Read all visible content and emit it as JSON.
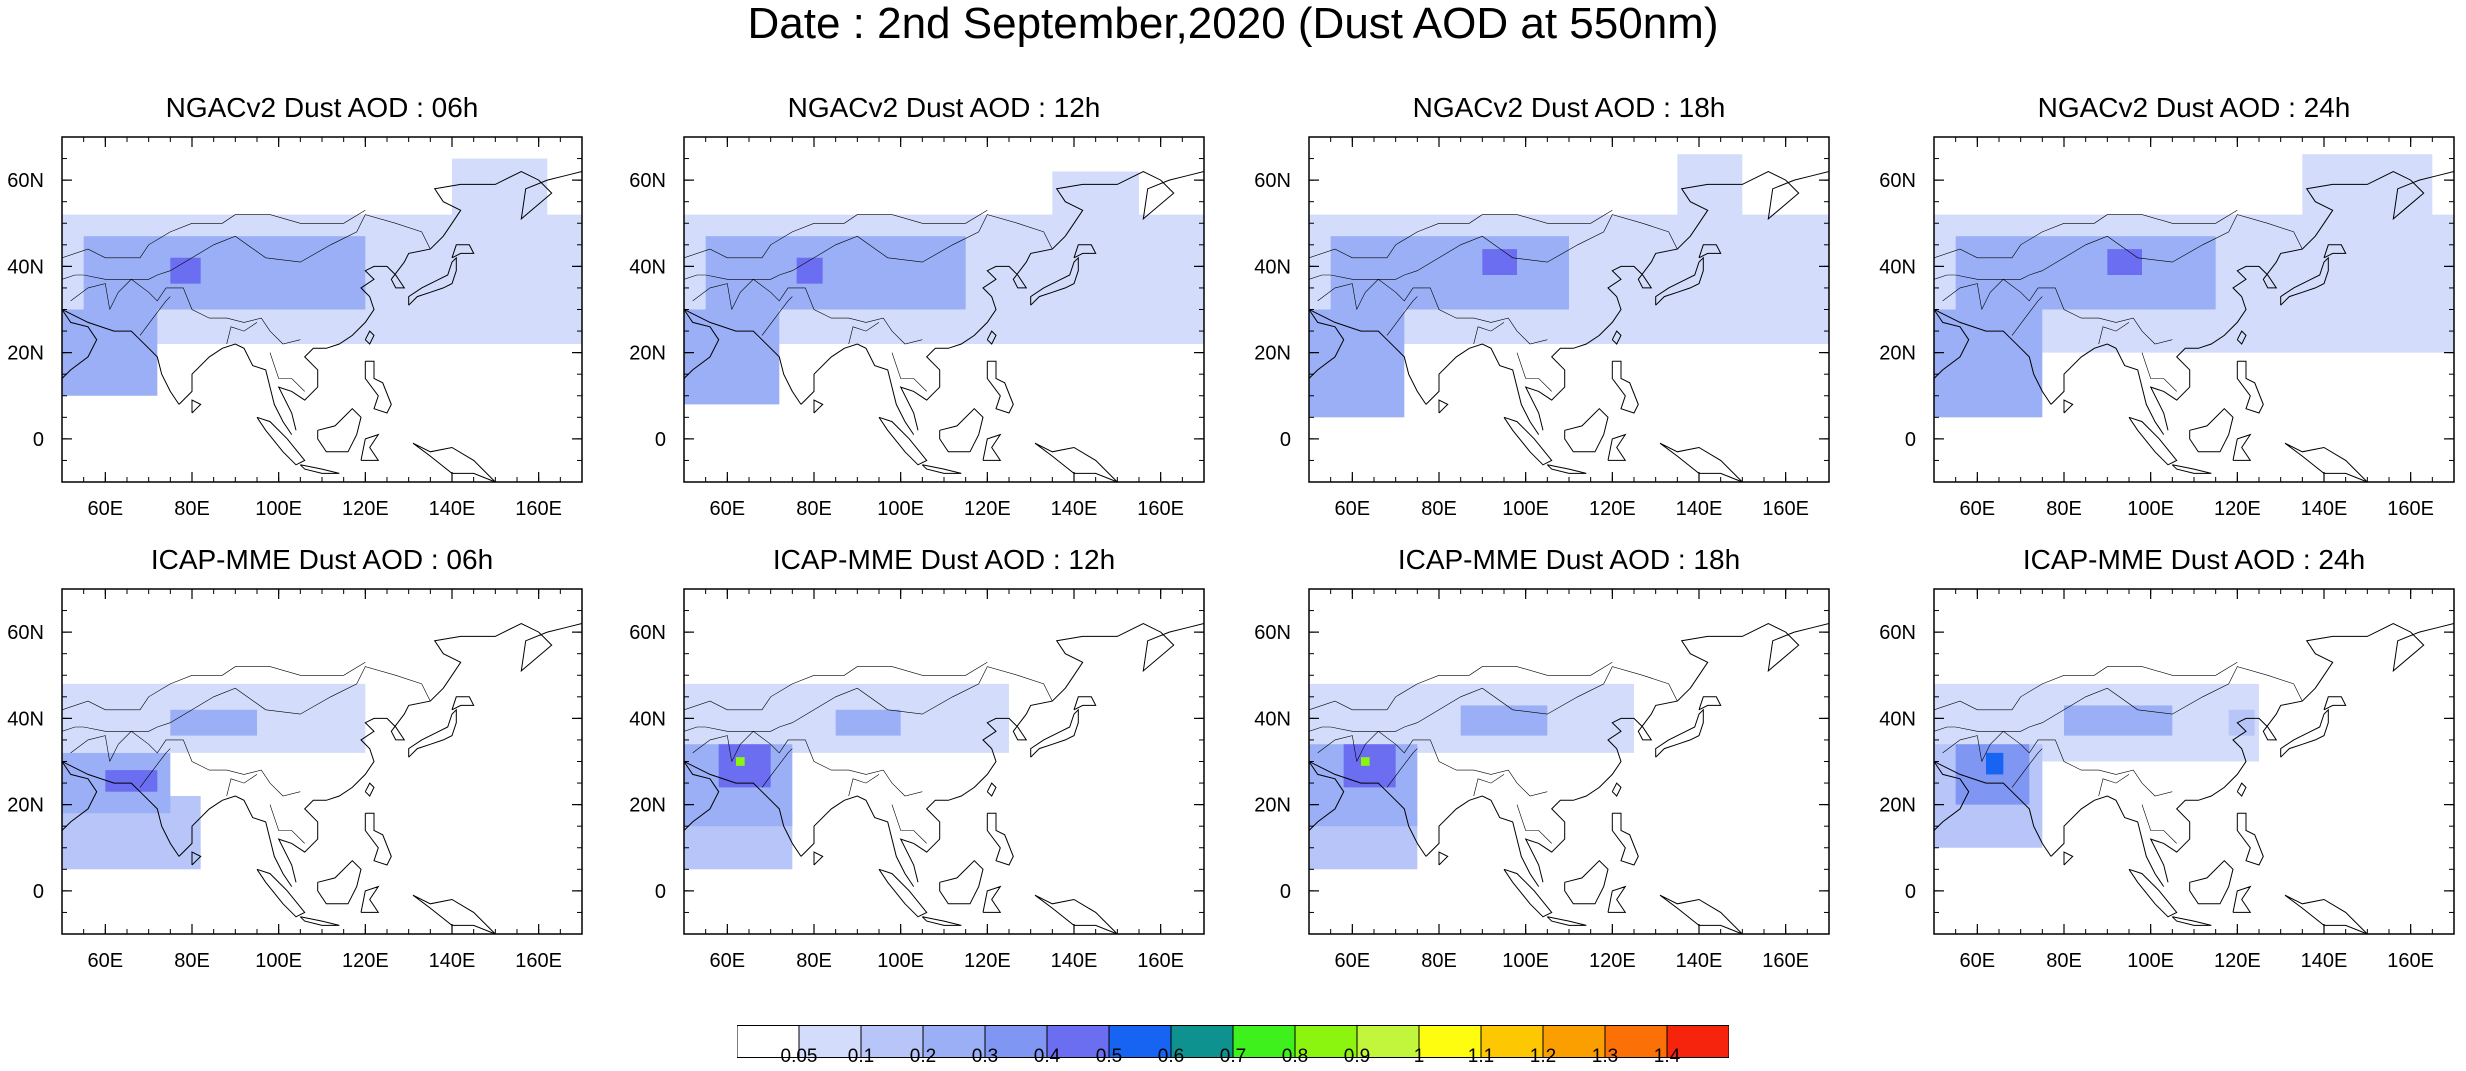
{
  "title": "Date : 2nd September,2020 (Dust AOD at 550nm)",
  "panels": [
    {
      "title": "NGACv2 Dust AOD : 06h",
      "model": "NGACv2",
      "hour": "06h"
    },
    {
      "title": "NGACv2 Dust AOD : 12h",
      "model": "NGACv2",
      "hour": "12h"
    },
    {
      "title": "NGACv2 Dust AOD : 18h",
      "model": "NGACv2",
      "hour": "18h"
    },
    {
      "title": "NGACv2 Dust AOD : 24h",
      "model": "NGACv2",
      "hour": "24h"
    },
    {
      "title": "ICAP-MME Dust AOD : 06h",
      "model": "ICAP-MME",
      "hour": "06h"
    },
    {
      "title": "ICAP-MME Dust AOD : 12h",
      "model": "ICAP-MME",
      "hour": "12h"
    },
    {
      "title": "ICAP-MME Dust AOD : 18h",
      "model": "ICAP-MME",
      "hour": "18h"
    },
    {
      "title": "ICAP-MME Dust AOD : 24h",
      "model": "ICAP-MME",
      "hour": "24h"
    }
  ],
  "map": {
    "lon_range": [
      50,
      170
    ],
    "lat_range": [
      -10,
      70
    ],
    "lon_ticks": [
      60,
      80,
      100,
      120,
      140,
      160
    ],
    "lon_tick_labels": [
      "60E",
      "80E",
      "100E",
      "120E",
      "140E",
      "160E"
    ],
    "lat_ticks": [
      0,
      20,
      40,
      60
    ],
    "lat_tick_labels": [
      "0",
      "20N",
      "40N",
      "60N"
    ]
  },
  "colorbar": {
    "labels": [
      "0.05",
      "0.1",
      "0.2",
      "0.3",
      "0.4",
      "0.5",
      "0.6",
      "0.7",
      "0.8",
      "0.9",
      "1",
      "1.1",
      "1.2",
      "1.3",
      "1.4"
    ],
    "colors": [
      "#ffffff",
      "#d3ddfb",
      "#b7c5f8",
      "#9aaff5",
      "#7f96f2",
      "#6b6ef0",
      "#1764f2",
      "#0d928f",
      "#3ef01c",
      "#8cf510",
      "#c1f63d",
      "#fffd0f",
      "#fdc802",
      "#fb9f01",
      "#fb7007",
      "#f7240d"
    ]
  },
  "dust_regions": {
    "ngac_06": [
      {
        "lon": [
          75,
          82
        ],
        "lat": [
          36,
          42
        ],
        "aod": 0.45
      },
      {
        "lon": [
          55,
          120
        ],
        "lat": [
          30,
          47
        ],
        "aod": 0.25
      },
      {
        "lon": [
          50,
          170
        ],
        "lat": [
          22,
          52
        ],
        "aod": 0.08
      },
      {
        "lon": [
          50,
          72
        ],
        "lat": [
          10,
          30
        ],
        "aod": 0.2
      },
      {
        "lon": [
          140,
          162
        ],
        "lat": [
          50,
          65
        ],
        "aod": 0.07
      }
    ],
    "ngac_12": [
      {
        "lon": [
          76,
          82
        ],
        "lat": [
          36,
          42
        ],
        "aod": 0.45
      },
      {
        "lon": [
          55,
          115
        ],
        "lat": [
          30,
          47
        ],
        "aod": 0.25
      },
      {
        "lon": [
          50,
          170
        ],
        "lat": [
          22,
          52
        ],
        "aod": 0.08
      },
      {
        "lon": [
          50,
          72
        ],
        "lat": [
          8,
          30
        ],
        "aod": 0.2
      },
      {
        "lon": [
          135,
          155
        ],
        "lat": [
          48,
          62
        ],
        "aod": 0.07
      }
    ],
    "ngac_18": [
      {
        "lon": [
          90,
          98
        ],
        "lat": [
          38,
          44
        ],
        "aod": 0.45
      },
      {
        "lon": [
          55,
          110
        ],
        "lat": [
          30,
          47
        ],
        "aod": 0.25
      },
      {
        "lon": [
          50,
          170
        ],
        "lat": [
          22,
          52
        ],
        "aod": 0.08
      },
      {
        "lon": [
          50,
          72
        ],
        "lat": [
          5,
          30
        ],
        "aod": 0.2
      },
      {
        "lon": [
          135,
          150
        ],
        "lat": [
          50,
          66
        ],
        "aod": 0.07
      }
    ],
    "ngac_24": [
      {
        "lon": [
          90,
          98
        ],
        "lat": [
          38,
          44
        ],
        "aod": 0.45
      },
      {
        "lon": [
          55,
          115
        ],
        "lat": [
          30,
          47
        ],
        "aod": 0.25
      },
      {
        "lon": [
          50,
          170
        ],
        "lat": [
          20,
          52
        ],
        "aod": 0.08
      },
      {
        "lon": [
          50,
          75
        ],
        "lat": [
          5,
          30
        ],
        "aod": 0.2
      },
      {
        "lon": [
          135,
          165
        ],
        "lat": [
          50,
          66
        ],
        "aod": 0.07
      }
    ],
    "icap_06": [
      {
        "lon": [
          60,
          72
        ],
        "lat": [
          23,
          28
        ],
        "aod": 0.45
      },
      {
        "lon": [
          50,
          75
        ],
        "lat": [
          18,
          32
        ],
        "aod": 0.25
      },
      {
        "lon": [
          75,
          95
        ],
        "lat": [
          36,
          42
        ],
        "aod": 0.25
      },
      {
        "lon": [
          50,
          120
        ],
        "lat": [
          32,
          48
        ],
        "aod": 0.08
      },
      {
        "lon": [
          50,
          82
        ],
        "lat": [
          5,
          22
        ],
        "aod": 0.12
      }
    ],
    "icap_12": [
      {
        "lon": [
          62,
          64
        ],
        "lat": [
          29,
          31
        ],
        "aod": 0.85
      },
      {
        "lon": [
          58,
          70
        ],
        "lat": [
          24,
          34
        ],
        "aod": 0.4
      },
      {
        "lon": [
          50,
          75
        ],
        "lat": [
          15,
          34
        ],
        "aod": 0.2
      },
      {
        "lon": [
          85,
          100
        ],
        "lat": [
          36,
          42
        ],
        "aod": 0.25
      },
      {
        "lon": [
          50,
          125
        ],
        "lat": [
          32,
          48
        ],
        "aod": 0.08
      },
      {
        "lon": [
          50,
          75
        ],
        "lat": [
          5,
          18
        ],
        "aod": 0.12
      }
    ],
    "icap_18": [
      {
        "lon": [
          62,
          64
        ],
        "lat": [
          29,
          31
        ],
        "aod": 0.85
      },
      {
        "lon": [
          58,
          70
        ],
        "lat": [
          24,
          34
        ],
        "aod": 0.4
      },
      {
        "lon": [
          50,
          75
        ],
        "lat": [
          15,
          34
        ],
        "aod": 0.2
      },
      {
        "lon": [
          85,
          105
        ],
        "lat": [
          36,
          43
        ],
        "aod": 0.25
      },
      {
        "lon": [
          50,
          125
        ],
        "lat": [
          32,
          48
        ],
        "aod": 0.08
      },
      {
        "lon": [
          50,
          75
        ],
        "lat": [
          5,
          18
        ],
        "aod": 0.12
      }
    ],
    "icap_24": [
      {
        "lon": [
          62,
          66
        ],
        "lat": [
          27,
          32
        ],
        "aod": 0.55
      },
      {
        "lon": [
          55,
          72
        ],
        "lat": [
          20,
          34
        ],
        "aod": 0.3
      },
      {
        "lon": [
          50,
          75
        ],
        "lat": [
          10,
          34
        ],
        "aod": 0.15
      },
      {
        "lon": [
          80,
          105
        ],
        "lat": [
          36,
          43
        ],
        "aod": 0.25
      },
      {
        "lon": [
          50,
          125
        ],
        "lat": [
          30,
          48
        ],
        "aod": 0.08
      },
      {
        "lon": [
          118,
          124
        ],
        "lat": [
          36,
          42
        ],
        "aod": 0.15
      }
    ]
  }
}
